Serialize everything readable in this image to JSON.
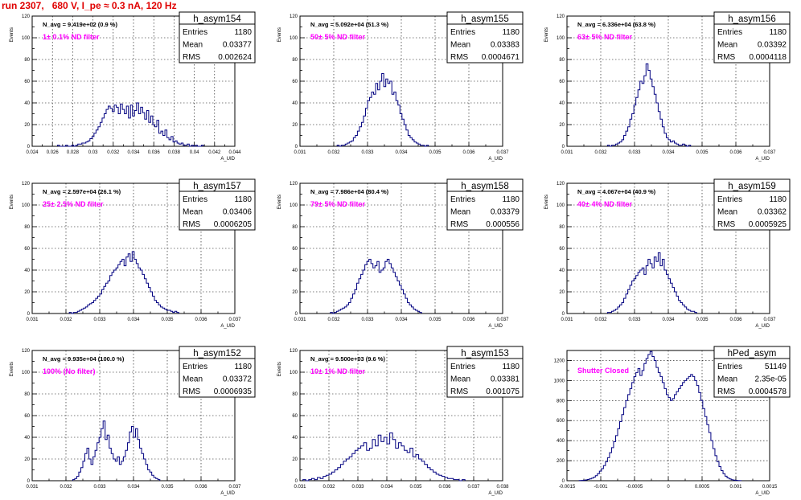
{
  "title": "run 2307,   680 V, I_pe ≈ 0.3 nA, 120 Hz",
  "chart_data": [
    {
      "type": "bar",
      "name": "h_asym154",
      "navg": "N_avg = 9.419e+02 (0.9 %)",
      "filter": "1± 0.1% ND filter",
      "stats": {
        "Entries": "1180",
        "Mean": "0.03377",
        "RMS": "0.002624"
      },
      "xlabel": "A_UID",
      "ylabel": "Events",
      "xlim": [
        0.024,
        0.044
      ],
      "ylim": [
        0,
        120
      ],
      "xticks": [
        "0.024",
        "0.026",
        "0.028",
        "0.03",
        "0.032",
        "0.034",
        "0.036",
        "0.038",
        "0.04",
        "0.042",
        "0.044"
      ],
      "yticks": [
        "0",
        "20",
        "40",
        "60",
        "80",
        "100",
        "120"
      ],
      "bins": {
        "lo": 0.0265,
        "width": 0.0002,
        "values": [
          1,
          0,
          0,
          0,
          1,
          0,
          0,
          1,
          0,
          1,
          2,
          2,
          3,
          3,
          4,
          5,
          7,
          9,
          12,
          15,
          18,
          22,
          26,
          30,
          34,
          37,
          35,
          32,
          38,
          36,
          30,
          39,
          34,
          30,
          37,
          26,
          38,
          28,
          33,
          40,
          30,
          36,
          31,
          25,
          33,
          22,
          28,
          20,
          18,
          24,
          12,
          14,
          10,
          15,
          8,
          6,
          9,
          4,
          5,
          3,
          2,
          3,
          1,
          1,
          2,
          0,
          1,
          0,
          1,
          0,
          0,
          1
        ]
      }
    },
    {
      "type": "bar",
      "name": "h_asym155",
      "navg": "N_avg = 5.092e+04 (51.3 %)",
      "filter": "50± 5% ND filter",
      "stats": {
        "Entries": "1180",
        "Mean": "0.03383",
        "RMS": "0.0004671"
      },
      "xlabel": "A_UID",
      "ylabel": "Events",
      "xlim": [
        0.031,
        0.037
      ],
      "ylim": [
        0,
        120
      ],
      "xticks": [
        "0.031",
        "0.032",
        "0.033",
        "0.034",
        "0.035",
        "0.036",
        "0.037"
      ],
      "yticks": [
        "0",
        "20",
        "40",
        "60",
        "80",
        "100",
        "120"
      ],
      "bins": {
        "lo": 0.0321,
        "width": 6e-05,
        "values": [
          1,
          0,
          1,
          1,
          2,
          3,
          4,
          5,
          8,
          10,
          14,
          18,
          22,
          28,
          35,
          42,
          45,
          50,
          48,
          58,
          52,
          60,
          67,
          55,
          62,
          58,
          60,
          48,
          50,
          42,
          38,
          30,
          25,
          20,
          15,
          10,
          8,
          6,
          4,
          3,
          2,
          1,
          1,
          0,
          1
        ]
      }
    },
    {
      "type": "bar",
      "name": "h_asym156",
      "navg": "N_avg = 6.336e+04 (63.8 %)",
      "filter": "63± 5% ND filter",
      "stats": {
        "Entries": "1180",
        "Mean": "0.03392",
        "RMS": "0.0004118"
      },
      "xlabel": "A_UID",
      "ylabel": "Events",
      "xlim": [
        0.031,
        0.037
      ],
      "ylim": [
        0,
        120
      ],
      "xticks": [
        "0.031",
        "0.032",
        "0.033",
        "0.034",
        "0.035",
        "0.036",
        "0.037"
      ],
      "yticks": [
        "0",
        "20",
        "40",
        "60",
        "80",
        "100",
        "120"
      ],
      "bins": {
        "lo": 0.0322,
        "width": 6e-05,
        "values": [
          1,
          0,
          1,
          1,
          2,
          3,
          4,
          6,
          10,
          14,
          18,
          25,
          30,
          38,
          45,
          52,
          60,
          58,
          65,
          76,
          70,
          62,
          55,
          48,
          40,
          32,
          25,
          18,
          12,
          8,
          6,
          4,
          5,
          3,
          2,
          1,
          1,
          2,
          1,
          0,
          1
        ]
      }
    },
    {
      "type": "bar",
      "name": "h_asym157",
      "navg": "N_avg = 2.597e+04 (26.1 %)",
      "filter": "25± 2.5% ND filter",
      "stats": {
        "Entries": "1180",
        "Mean": "0.03406",
        "RMS": "0.0006205"
      },
      "xlabel": "A_UID",
      "ylabel": "Events",
      "xlim": [
        0.031,
        0.037
      ],
      "ylim": [
        0,
        120
      ],
      "xticks": [
        "0.031",
        "0.032",
        "0.033",
        "0.034",
        "0.035",
        "0.036",
        "0.037"
      ],
      "yticks": [
        "0",
        "20",
        "40",
        "60",
        "80",
        "100",
        "120"
      ],
      "bins": {
        "lo": 0.0321,
        "width": 6e-05,
        "values": [
          1,
          0,
          1,
          1,
          2,
          3,
          4,
          5,
          6,
          8,
          9,
          10,
          12,
          14,
          16,
          18,
          22,
          25,
          28,
          30,
          35,
          38,
          40,
          42,
          45,
          48,
          50,
          44,
          52,
          55,
          48,
          57,
          50,
          46,
          42,
          40,
          36,
          32,
          28,
          24,
          20,
          16,
          12,
          10,
          8,
          6,
          5,
          4,
          3,
          3,
          2,
          1,
          2,
          1
        ]
      }
    },
    {
      "type": "bar",
      "name": "h_asym158",
      "navg": "N_avg = 7.986e+04 (80.4 %)",
      "filter": "79± 5% ND filter",
      "stats": {
        "Entries": "1180",
        "Mean": "0.03379",
        "RMS": "0.000556"
      },
      "xlabel": "A_UID",
      "ylabel": "Events",
      "xlim": [
        0.031,
        0.037
      ],
      "ylim": [
        0,
        120
      ],
      "xticks": [
        "0.031",
        "0.032",
        "0.033",
        "0.034",
        "0.035",
        "0.036",
        "0.037"
      ],
      "yticks": [
        "0",
        "20",
        "40",
        "60",
        "80",
        "100",
        "120"
      ],
      "bins": {
        "lo": 0.0319,
        "width": 6e-05,
        "values": [
          1,
          0,
          1,
          2,
          3,
          4,
          5,
          6,
          8,
          10,
          14,
          18,
          22,
          28,
          32,
          36,
          40,
          45,
          48,
          50,
          46,
          42,
          44,
          48,
          38,
          40,
          42,
          48,
          50,
          46,
          42,
          38,
          34,
          30,
          26,
          22,
          18,
          14,
          10,
          8,
          6,
          4,
          3,
          2,
          1
        ]
      }
    },
    {
      "type": "bar",
      "name": "h_asym159",
      "navg": "N_avg = 4.067e+04 (40.9 %)",
      "filter": "40± 4% ND filter",
      "stats": {
        "Entries": "1180",
        "Mean": "0.03362",
        "RMS": "0.0005925"
      },
      "xlabel": "A_UID",
      "ylabel": "Events",
      "xlim": [
        0.031,
        0.037
      ],
      "ylim": [
        0,
        120
      ],
      "xticks": [
        "0.031",
        "0.032",
        "0.033",
        "0.034",
        "0.035",
        "0.036",
        "0.037"
      ],
      "yticks": [
        "0",
        "20",
        "40",
        "60",
        "80",
        "100",
        "120"
      ],
      "bins": {
        "lo": 0.0322,
        "width": 6e-05,
        "values": [
          1,
          1,
          2,
          3,
          4,
          6,
          8,
          10,
          14,
          18,
          22,
          26,
          30,
          32,
          35,
          38,
          40,
          42,
          36,
          44,
          50,
          46,
          42,
          52,
          48,
          56,
          44,
          50,
          40,
          36,
          32,
          28,
          24,
          20,
          16,
          12,
          10,
          8,
          6,
          4,
          3,
          2,
          2,
          1
        ]
      }
    },
    {
      "type": "bar",
      "name": "h_asym152",
      "navg": "N_avg = 9.935e+04 (100.0 %)",
      "filter": "100% (No filter)",
      "stats": {
        "Entries": "1180",
        "Mean": "0.03372",
        "RMS": "0.0006935"
      },
      "xlabel": "A_UID",
      "ylabel": "Events",
      "xlim": [
        0.031,
        0.037
      ],
      "ylim": [
        0,
        120
      ],
      "xticks": [
        "0.031",
        "0.032",
        "0.033",
        "0.034",
        "0.035",
        "0.036",
        "0.037"
      ],
      "yticks": [
        "0",
        "20",
        "40",
        "60",
        "80",
        "100",
        "120"
      ],
      "bins": {
        "lo": 0.0322,
        "width": 6e-05,
        "values": [
          1,
          2,
          4,
          8,
          12,
          18,
          25,
          30,
          20,
          15,
          22,
          28,
          35,
          40,
          48,
          55,
          38,
          42,
          30,
          25,
          20,
          18,
          22,
          15,
          18,
          22,
          28,
          35,
          45,
          50,
          40,
          48,
          38,
          30,
          25,
          20,
          15,
          10,
          8,
          5,
          3,
          2,
          1
        ]
      }
    },
    {
      "type": "bar",
      "name": "h_asym153",
      "navg": "N_avg = 9.500e+03 (9.6 %)",
      "filter": "10± 1% ND filter",
      "stats": {
        "Entries": "1180",
        "Mean": "0.03381",
        "RMS": "0.001075"
      },
      "xlabel": "A_UID",
      "ylabel": "Events",
      "xlim": [
        0.031,
        0.038
      ],
      "ylim": [
        0,
        120
      ],
      "xticks": [
        "0.031",
        "0.032",
        "0.033",
        "0.034",
        "0.035",
        "0.036",
        "0.037",
        "0.038"
      ],
      "yticks": [
        "0",
        "20",
        "40",
        "60",
        "80",
        "100",
        "120"
      ],
      "bins": {
        "lo": 0.0311,
        "width": 0.0001,
        "values": [
          1,
          0,
          1,
          2,
          1,
          3,
          2,
          4,
          5,
          6,
          8,
          10,
          12,
          15,
          18,
          20,
          22,
          25,
          28,
          30,
          32,
          35,
          28,
          30,
          38,
          32,
          42,
          36,
          40,
          34,
          44,
          38,
          30,
          35,
          32,
          28,
          26,
          30,
          22,
          24,
          20,
          18,
          15,
          12,
          10,
          8,
          6,
          5,
          4,
          3,
          2,
          2,
          1,
          1,
          0,
          1
        ]
      }
    },
    {
      "type": "bar",
      "name": "hPed_asym",
      "navg": "",
      "filter": "Shutter Closed",
      "stats": {
        "Entries": "51149",
        "Mean": "2.35e-05",
        "RMS": "0.0004578"
      },
      "xlabel": "A_UID",
      "ylabel": "",
      "xlim": [
        -0.0015,
        0.0015
      ],
      "ylim": [
        0,
        1300
      ],
      "xticks": [
        "-0.0015",
        "-0.001",
        "-0.0005",
        "0",
        "0.0005",
        "0.001",
        "0.0015"
      ],
      "yticks": [
        "0",
        "200",
        "400",
        "600",
        "800",
        "1000",
        "1200"
      ],
      "bins": {
        "lo": -0.00132,
        "width": 3e-05,
        "values": [
          2,
          3,
          5,
          8,
          12,
          18,
          25,
          35,
          50,
          70,
          95,
          120,
          150,
          190,
          230,
          280,
          330,
          390,
          450,
          520,
          590,
          660,
          730,
          800,
          860,
          920,
          980,
          1040,
          1080,
          1120,
          1050,
          1100,
          1170,
          1220,
          1260,
          1290,
          1240,
          1200,
          1130,
          1080,
          1040,
          980,
          920,
          860,
          830,
          800,
          820,
          860,
          890,
          920,
          950,
          980,
          1000,
          1020,
          1040,
          1060,
          1040,
          1000,
          950,
          880,
          800,
          720,
          640,
          560,
          480,
          400,
          320,
          250,
          190,
          140,
          100,
          70,
          45,
          28,
          18,
          10,
          6,
          4,
          2,
          1
        ]
      }
    }
  ]
}
